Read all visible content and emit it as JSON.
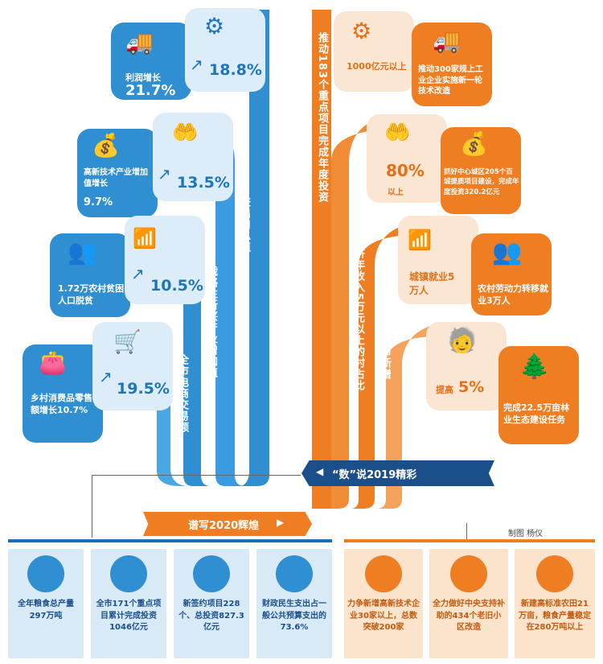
{
  "banner1": "“数”说2019精彩",
  "banner2": "谱写2020辉煌",
  "credit": "制图 杨仪",
  "left": {
    "profit": {
      "label": "利润增长",
      "value": "21.7%"
    },
    "revenue": {
      "value": "18.8%",
      "stem": "全市规模以上工业营业收入"
    },
    "hightech": {
      "label": "高新技术产业增加值增长",
      "value": "9.7%"
    },
    "trade": {
      "value": "13.5%",
      "stem": "进出口总值"
    },
    "poverty": {
      "label": "1.72万农村贫困人口脱贫"
    },
    "emerging": {
      "value": "10.5%",
      "stem": "战略性新兴产业增加值"
    },
    "consume": {
      "label": "乡村消费品零售额增长10.7%"
    },
    "ecommerce": {
      "value": "19.5%",
      "stem": "全市电商交易额"
    }
  },
  "right": {
    "projects": {
      "value": "1000亿元以上",
      "stem": "推动183个重点项目完成年度投资"
    },
    "techreform": {
      "label": "推动300家规上工业企业实施新一轮技术改造"
    },
    "village": {
      "value": "80%",
      "sub": "以上",
      "stem": "全市农村集体经济年收入5万元以上的村占比"
    },
    "urban": {
      "label": "抓好中心城区205个百城提质项目建设，完成年度投资320.2亿元"
    },
    "jobs": {
      "label": "城镇就业5万人",
      "stem": "力争实现全市新增"
    },
    "rural_labor": {
      "label": "农村劳动力转移就业3万人"
    },
    "pension": {
      "label": "提高",
      "value": "5%",
      "stem": "退休人员基本养老金"
    },
    "forest": {
      "label": "完成22.5万亩林业生态建设任务"
    }
  },
  "bottom": [
    {
      "text": "全年粮食总产量297万吨",
      "icon": "grain-field-icon"
    },
    {
      "text": "全市171个重点项目累计完成投资1046亿元",
      "icon": "factory-icon"
    },
    {
      "text": "新签约项目228个、总投资827.3亿元",
      "icon": "growth-chart-icon"
    },
    {
      "text": "财政民生支出占一般公共预算支出的73.6%",
      "icon": "buildings-icon"
    },
    {
      "text": "力争新增高新技术企业30家以上，总数突破200家",
      "icon": "people-icon"
    },
    {
      "text": "全力做好中央支持补助的434个老旧小区改造",
      "icon": "basket-icon"
    },
    {
      "text": "新建高标准农田21万亩，粮食产量稳定在280万吨以上",
      "icon": "farm-house-icon"
    }
  ],
  "colors": {
    "blue": "#2f8fd0",
    "light_blue": "#dcecf8",
    "orange": "#ef7d22",
    "cream": "#fbe6d3",
    "navy": "#1b4f8a"
  }
}
